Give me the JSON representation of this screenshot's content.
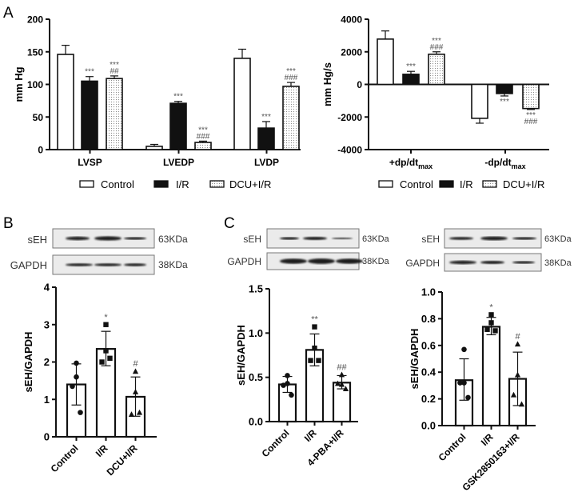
{
  "panels": {
    "A": "A",
    "B": "B",
    "C": "C"
  },
  "colors": {
    "control": "#ffffff",
    "ir": "#111111",
    "treated_pattern": "#ffffff",
    "stroke": "#111111",
    "annotation": "#555555"
  },
  "blots": [
    {
      "panel": "B",
      "rows": [
        {
          "label": "sEH",
          "size": "63KDa"
        },
        {
          "label": "GAPDH",
          "size": "38KDa"
        }
      ]
    },
    {
      "panel": "C-left",
      "rows": [
        {
          "label": "sEH",
          "size": "63KDa"
        },
        {
          "label": "GAPDH",
          "size": "38KDa"
        }
      ]
    },
    {
      "panel": "C-right",
      "rows": [
        {
          "label": "sEH",
          "size": "63KDa"
        },
        {
          "label": "GAPDH",
          "size": "38KDa"
        }
      ]
    }
  ],
  "chart_data": [
    {
      "id": "A-pressure",
      "type": "bar",
      "ylabel": "mm Hg",
      "ylim": [
        0,
        200
      ],
      "yticks": [
        0,
        50,
        100,
        150,
        200
      ],
      "categories": [
        {
          "main": "LVSP",
          "sub": ""
        },
        {
          "main": "LVEDP",
          "sub": ""
        },
        {
          "main": "LVDP",
          "sub": ""
        }
      ],
      "series": [
        {
          "name": "Control",
          "fill": "white",
          "values": [
            146,
            5,
            140
          ],
          "errors": [
            14,
            3,
            14
          ],
          "annotations": [
            [],
            [],
            []
          ]
        },
        {
          "name": "I/R",
          "fill": "black",
          "values": [
            105,
            71,
            33
          ],
          "errors": [
            7,
            3,
            10
          ],
          "annotations": [
            [
              "***"
            ],
            [
              "***"
            ],
            [
              "***"
            ]
          ]
        },
        {
          "name": "DCU+I/R",
          "fill": "dotted",
          "values": [
            109,
            11,
            97
          ],
          "errors": [
            4,
            2,
            6
          ],
          "annotations": [
            [
              "***",
              "##"
            ],
            [
              "***",
              "###"
            ],
            [
              "***",
              "###"
            ]
          ]
        }
      ],
      "legend": "bottom"
    },
    {
      "id": "A-dpdt",
      "type": "bar",
      "ylabel": "mm Hg/s",
      "ylim": [
        -4000,
        4000
      ],
      "yticks": [
        -4000,
        -2000,
        0,
        2000,
        4000
      ],
      "categories": [
        {
          "main": "+dp/dt",
          "sub": "max"
        },
        {
          "main": "-dp/dt",
          "sub": "max"
        }
      ],
      "series": [
        {
          "name": "Control",
          "fill": "white",
          "values": [
            2780,
            -2080
          ],
          "errors": [
            500,
            300
          ],
          "annotations": [
            [],
            []
          ]
        },
        {
          "name": "I/R",
          "fill": "black",
          "values": [
            620,
            -560
          ],
          "errors": [
            180,
            150
          ],
          "annotations": [
            [
              "***"
            ],
            [
              "***"
            ]
          ]
        },
        {
          "name": "DCU+I/R",
          "fill": "dotted",
          "values": [
            1850,
            -1480
          ],
          "errors": [
            150,
            60
          ],
          "annotations": [
            [
              "***",
              "###"
            ],
            [
              "***",
              "###"
            ]
          ]
        }
      ],
      "legend": "bottom"
    },
    {
      "id": "B-sEH",
      "type": "bar",
      "ylabel": "sEH/GAPDH",
      "ylim": [
        0,
        4
      ],
      "yticks": [
        "0",
        "1",
        "2",
        "3",
        "4"
      ],
      "categories": [
        "Control",
        "I/R",
        "DCU+I/R"
      ],
      "bars": [
        {
          "mean": 1.4,
          "sd": [
            0.85,
            1.95
          ],
          "points": [
            1.97,
            1.6,
            1.35,
            0.65
          ],
          "marker": "circle",
          "annotation": ""
        },
        {
          "mean": 2.35,
          "sd": [
            1.9,
            2.82
          ],
          "points": [
            3.0,
            2.3,
            2.0,
            2.1
          ],
          "marker": "square",
          "annotation": "*"
        },
        {
          "mean": 1.07,
          "sd": [
            0.55,
            1.6
          ],
          "points": [
            1.75,
            1.2,
            0.6,
            0.65
          ],
          "marker": "triangle",
          "annotation": "#"
        }
      ]
    },
    {
      "id": "C-4PBA",
      "type": "bar",
      "ylabel": "sEH/GAPDH",
      "ylim": [
        0,
        1.5
      ],
      "yticks": [
        "0.0",
        "0.5",
        "1.0",
        "1.5"
      ],
      "categories": [
        "Control",
        "I/R",
        "4-PBA+I/R"
      ],
      "bars": [
        {
          "mean": 0.42,
          "sd": [
            0.33,
            0.51
          ],
          "points": [
            0.52,
            0.43,
            0.41,
            0.3
          ],
          "marker": "circle",
          "annotation": ""
        },
        {
          "mean": 0.81,
          "sd": [
            0.63,
            0.99
          ],
          "points": [
            1.07,
            0.83,
            0.69,
            0.69
          ],
          "marker": "square",
          "annotation": "**"
        },
        {
          "mean": 0.44,
          "sd": [
            0.37,
            0.52
          ],
          "points": [
            0.53,
            0.42,
            0.43,
            0.37
          ],
          "marker": "triangle",
          "annotation": "##"
        }
      ]
    },
    {
      "id": "C-GSK",
      "type": "bar",
      "ylabel": "sEH/GAPDH",
      "ylim": [
        0,
        1.0
      ],
      "yticks": [
        "0.0",
        "0.2",
        "0.4",
        "0.6",
        "0.8",
        "1.0"
      ],
      "categories": [
        "Control",
        "I/R",
        "GSK2850163+I/R"
      ],
      "bars": [
        {
          "mean": 0.34,
          "sd": [
            0.19,
            0.5
          ],
          "points": [
            0.57,
            0.32,
            0.32,
            0.21
          ],
          "marker": "circle",
          "annotation": ""
        },
        {
          "mean": 0.74,
          "sd": [
            0.68,
            0.81
          ],
          "points": [
            0.83,
            0.77,
            0.72,
            0.71
          ],
          "marker": "square",
          "annotation": "*"
        },
        {
          "mean": 0.35,
          "sd": [
            0.15,
            0.55
          ],
          "points": [
            0.61,
            0.38,
            0.23,
            0.16
          ],
          "marker": "triangle",
          "annotation": "#"
        }
      ]
    }
  ]
}
